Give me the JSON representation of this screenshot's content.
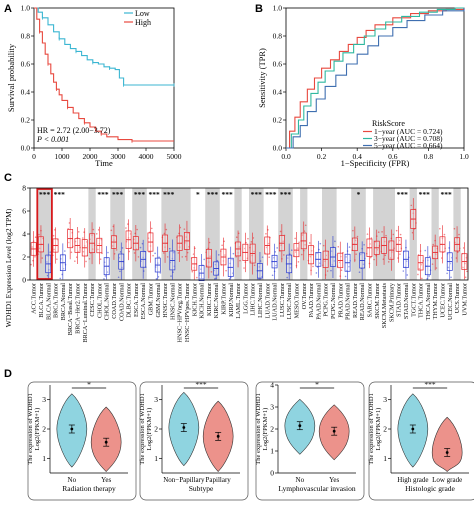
{
  "panels": {
    "a": "A",
    "b": "B",
    "c": "C",
    "d": "D"
  },
  "colors": {
    "low": "#3bb6d2",
    "high": "#e8493f",
    "roc_1y": "#e8493f",
    "roc_3y": "#2fb8a0",
    "roc_5y": "#3f6fb0",
    "tumor": "#e8262b",
    "normal": "#2b3bd0",
    "violin_a": "#8fd4e0",
    "violin_b": "#ec928b",
    "shade": "#d3d3d3",
    "highlight": "#d7191c"
  },
  "chart_data": [
    {
      "type": "line",
      "panel": "A",
      "xlabel": "Time",
      "ylabel": "Survival probability",
      "xlim": [
        0,
        5000
      ],
      "ylim": [
        0,
        1
      ],
      "xticks": [
        0,
        1000,
        2000,
        3000,
        4000,
        5000
      ],
      "yticks": [
        0,
        0.2,
        0.4,
        0.6,
        0.8,
        1
      ],
      "tick_labels_y": [
        "0.0",
        "0.2",
        "0.4",
        "0.6",
        "0.8",
        "1.0"
      ],
      "legend": [
        "Low",
        "High"
      ],
      "annotations": [
        "HR = 2.72 (2.00−3.72)",
        "P < 0.001"
      ],
      "series": [
        {
          "name": "Low",
          "x": [
            0,
            150,
            300,
            500,
            700,
            900,
            1100,
            1300,
            1500,
            1700,
            1900,
            2100,
            2300,
            2500,
            2700,
            2900,
            3050,
            3200,
            4000,
            4300,
            5000
          ],
          "y": [
            1,
            0.97,
            0.93,
            0.88,
            0.83,
            0.78,
            0.74,
            0.71,
            0.69,
            0.66,
            0.63,
            0.61,
            0.6,
            0.58,
            0.57,
            0.56,
            0.5,
            0.45,
            0.45,
            0.45,
            0.45
          ]
        },
        {
          "name": "High",
          "x": [
            0,
            100,
            200,
            300,
            400,
            500,
            600,
            700,
            800,
            900,
            1000,
            1200,
            1400,
            1600,
            1800,
            2000,
            2200,
            2400,
            2600,
            3000,
            3500,
            4000,
            5000
          ],
          "y": [
            1,
            0.92,
            0.83,
            0.75,
            0.67,
            0.6,
            0.53,
            0.47,
            0.42,
            0.38,
            0.34,
            0.29,
            0.25,
            0.21,
            0.18,
            0.15,
            0.12,
            0.1,
            0.08,
            0.06,
            0.05,
            0.05,
            0.05
          ]
        }
      ]
    },
    {
      "type": "line",
      "panel": "B",
      "xlabel": "1−Specificity (FPR)",
      "ylabel": "Sensitivity (TPR)",
      "xlim": [
        0,
        1
      ],
      "ylim": [
        0,
        1
      ],
      "xticks": [
        0,
        0.2,
        0.4,
        0.6,
        0.8,
        1
      ],
      "yticks": [
        0,
        0.2,
        0.4,
        0.6,
        0.8,
        1
      ],
      "tick_labels": [
        "0.0",
        "0.2",
        "0.4",
        "0.6",
        "0.8",
        "1.0"
      ],
      "legend_title": "RiskScore",
      "series": [
        {
          "name": "1−year (AUC = 0.724)",
          "x": [
            0,
            0.02,
            0.05,
            0.08,
            0.12,
            0.16,
            0.2,
            0.25,
            0.3,
            0.35,
            0.4,
            0.45,
            0.5,
            0.6,
            0.7,
            0.8,
            0.9,
            1
          ],
          "y": [
            0,
            0.12,
            0.22,
            0.33,
            0.42,
            0.5,
            0.57,
            0.63,
            0.69,
            0.74,
            0.79,
            0.84,
            0.88,
            0.93,
            0.96,
            0.98,
            0.99,
            1
          ]
        },
        {
          "name": "3−year (AUC = 0.708)",
          "x": [
            0,
            0.03,
            0.07,
            0.1,
            0.14,
            0.18,
            0.22,
            0.27,
            0.32,
            0.38,
            0.44,
            0.5,
            0.56,
            0.65,
            0.75,
            0.85,
            0.95,
            1
          ],
          "y": [
            0,
            0.1,
            0.2,
            0.3,
            0.39,
            0.47,
            0.55,
            0.62,
            0.68,
            0.74,
            0.8,
            0.85,
            0.9,
            0.94,
            0.97,
            0.99,
            1,
            1
          ]
        },
        {
          "name": "5−year (AUC = 0.664)",
          "x": [
            0,
            0.04,
            0.08,
            0.12,
            0.17,
            0.22,
            0.28,
            0.34,
            0.4,
            0.46,
            0.52,
            0.6,
            0.68,
            0.78,
            0.88,
            1
          ],
          "y": [
            0,
            0.08,
            0.16,
            0.26,
            0.35,
            0.44,
            0.52,
            0.6,
            0.67,
            0.73,
            0.8,
            0.86,
            0.91,
            0.95,
            0.98,
            1
          ]
        }
      ]
    },
    {
      "type": "box",
      "panel": "C",
      "ylabel": "WDHD1 Expression Level (log2 TPM)",
      "ylim": [
        0,
        8
      ],
      "yticks": [
        0,
        2,
        4,
        6,
        8
      ],
      "categories": [
        "ACC.Tumor",
        "BLCA.Tumor",
        "BLCA.Normal",
        "BRCA.Tumor",
        "BRCA.Normal",
        "BRCA−Basal.Tumor",
        "BRCA−Her2.Tumor",
        "BRCA−Luminal.Tumor",
        "CESC.Tumor",
        "CHOL.Tumor",
        "CHOL.Normal",
        "COAD.Tumor",
        "COAD.Normal",
        "DLBC.Tumor",
        "ESCA.Tumor",
        "ESCA.Normal",
        "GBM.Tumor",
        "GBM.Normal",
        "HNSC.Tumor",
        "HNSC.Normal",
        "HNSC−HPVneg.Tumor",
        "HNSC−HPVpos.Tumor",
        "KICH.Tumor",
        "KICH.Normal",
        "KIRC.Tumor",
        "KIRC.Normal",
        "KIRP.Tumor",
        "KIRP.Normal",
        "LAML.Tumor",
        "LGG.Tumor",
        "LIHC.Tumor",
        "LIHC.Normal",
        "LUAD.Tumor",
        "LUAD.Normal",
        "LUSC.Tumor",
        "LUSC.Normal",
        "MESO.Tumor",
        "OV.Tumor",
        "PAAD.Tumor",
        "PAAD.Normal",
        "PCPG.Tumor",
        "PCPG.Normal",
        "PRAD.Tumor",
        "PRAD.Normal",
        "READ.Tumor",
        "READ.Normal",
        "SARC.Tumor",
        "SKCM.Tumor",
        "SKCM.Metastasis",
        "SKCM.Primary",
        "STAD.Tumor",
        "STAD.Normal",
        "TGCT.Tumor",
        "THCA.Tumor",
        "THCA.Normal",
        "THYM.Tumor",
        "UCEC.Tumor",
        "UCEC.Normal",
        "UCS.Tumor",
        "UVM.Tumor"
      ],
      "medians": [
        2.7,
        3.1,
        1.4,
        3.0,
        1.5,
        3.6,
        3.0,
        2.8,
        3.2,
        3.0,
        1.2,
        3.3,
        1.6,
        3.5,
        3.2,
        1.8,
        3.3,
        1.3,
        3.2,
        1.7,
        3.2,
        3.4,
        1.4,
        0.6,
        1.9,
        1.0,
        2.0,
        1.1,
        2.7,
        2.4,
        2.3,
        0.8,
        3.0,
        1.6,
        3.2,
        1.4,
        2.6,
        3.4,
        2.2,
        1.8,
        1.8,
        2.0,
        1.7,
        1.5,
        3.1,
        1.7,
        2.8,
        2.8,
        3.0,
        2.6,
        3.1,
        1.8,
        5.3,
        1.5,
        1.2,
        2.4,
        3.1,
        1.6,
        3.1,
        1.6
      ],
      "significance": [
        "",
        "***",
        "",
        "***",
        "",
        "",
        "",
        "",
        "",
        "***",
        "",
        "***",
        "",
        "",
        "***",
        "",
        "***",
        "",
        "***",
        "",
        "",
        "",
        "*",
        "",
        "***",
        "",
        "***",
        "",
        "",
        "",
        "***",
        "",
        "***",
        "",
        "***",
        "",
        "",
        "",
        "",
        "",
        "",
        "",
        "",
        "",
        "*",
        "",
        "",
        "",
        "",
        "",
        "***",
        "",
        "",
        "***",
        "",
        "",
        "***",
        "",
        "",
        ""
      ],
      "highlight": "BLCA"
    },
    {
      "type": "violin",
      "panel": "D",
      "ylabel": "The expression of WDHD1\nLog2(FPKM+1)",
      "plots": [
        {
          "xlabel": "Radiation therapy",
          "categories": [
            "No",
            "Yes"
          ],
          "means": [
            2.0,
            1.55
          ],
          "significance": "*",
          "ylim": [
            0.5,
            3.5
          ],
          "yticks": [
            1,
            2,
            3
          ]
        },
        {
          "xlabel": "Subtype",
          "categories": [
            "Non−Papillary",
            "Papillary"
          ],
          "means": [
            2.05,
            1.75
          ],
          "significance": "***",
          "ylim": [
            0.5,
            3.5
          ],
          "yticks": [
            1,
            2,
            3
          ]
        },
        {
          "xlabel": "Lymphovascular invasion",
          "categories": [
            "No",
            "Yes"
          ],
          "means": [
            2.15,
            1.9
          ],
          "significance": "*",
          "ylim": [
            0,
            4
          ],
          "yticks": [
            0,
            1,
            2,
            3,
            4
          ]
        },
        {
          "xlabel": "Histologic grade",
          "categories": [
            "High grade",
            "Low grade"
          ],
          "means": [
            2.0,
            1.2
          ],
          "significance": "***",
          "ylim": [
            0.5,
            3.5
          ],
          "yticks": [
            1,
            2,
            3
          ]
        }
      ]
    }
  ]
}
